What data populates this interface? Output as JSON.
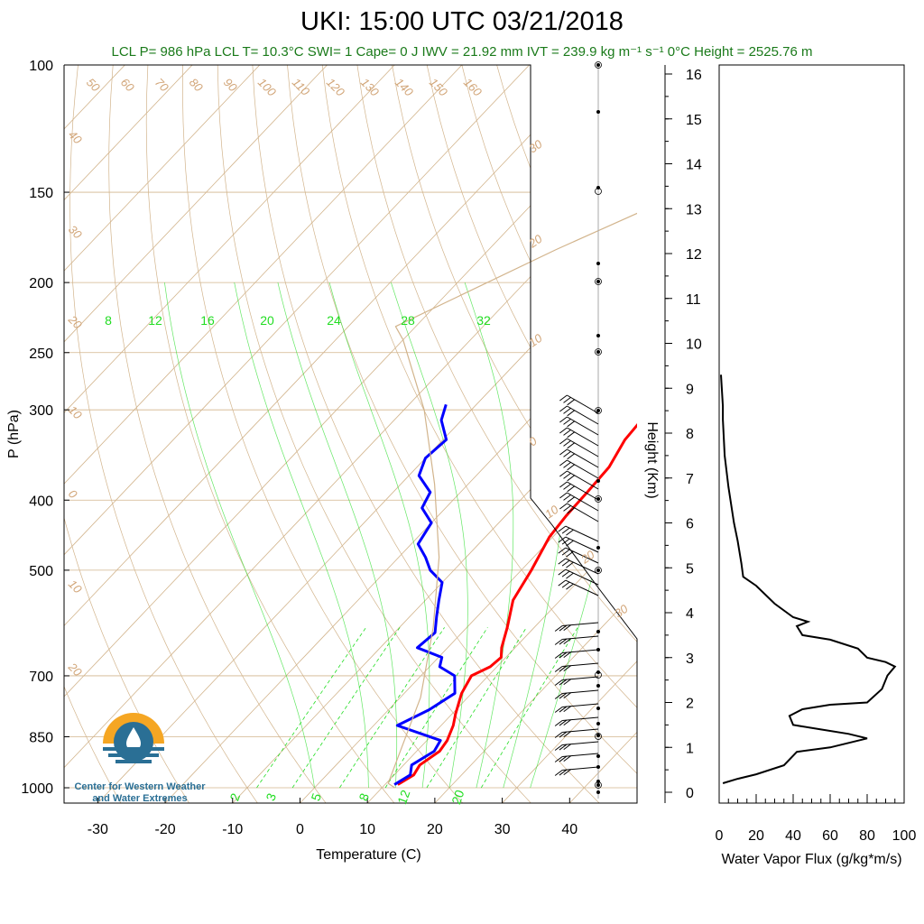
{
  "title": "UKI: 15:00 UTC 03/21/2018",
  "subtitle": "LCL P= 986 hPa  LCL T= 10.3°C  SWI= 1  Cape= 0 J  IWV = 21.92 mm  IVT = 239.9 kg m⁻¹ s⁻¹  0°C Height = 2525.76 m",
  "logo_text_line1": "Center for Western Weather",
  "logo_text_line2": "and Water Extremes",
  "colors": {
    "temperature": "#ff0000",
    "dewpoint": "#0000ff",
    "isotherm": "#d2b48c",
    "mixing_ratio": "#22dd22",
    "parcel": "#d2b48c",
    "subtitle": "#1a7a1a",
    "logo_orange": "#f5a623",
    "logo_blue": "#2a6f95"
  },
  "chart_data": [
    {
      "type": "line",
      "subtype": "skew-t log-p",
      "xlabel": "Temperature (C)",
      "ylabel": "P (hPa)",
      "xlim": [
        -35,
        50
      ],
      "ylim": [
        1050,
        100
      ],
      "y_scale": "log",
      "x_ticks": [
        "-30",
        "-20",
        "-10",
        "0",
        "10",
        "20",
        "30",
        "40"
      ],
      "y_ticks": [
        "100",
        "150",
        "200",
        "250",
        "300",
        "400",
        "500",
        "700",
        "850",
        "1000"
      ],
      "isotherm_labels": [
        "50",
        "60",
        "70",
        "80",
        "90",
        "100",
        "110",
        "120",
        "130",
        "140",
        "150",
        "160",
        "40",
        "30",
        "20",
        "10",
        "0",
        "10",
        "20"
      ],
      "dry_adiabat_labels": [
        "30",
        "20",
        "10",
        "0",
        "10",
        "20",
        "30"
      ],
      "mixing_ratio_labels_top": [
        "8",
        "12",
        "16",
        "20",
        "24",
        "28",
        "32"
      ],
      "mixing_ratio_labels_bottom": [
        "2",
        "3",
        "5",
        "8",
        "12",
        "20"
      ],
      "series": [
        {
          "name": "Temperature",
          "points": [
            [
              11.9,
              990
            ],
            [
              12.9,
              960
            ],
            [
              12.4,
              930
            ],
            [
              13.4,
              890
            ],
            [
              13.0,
              860
            ],
            [
              11.8,
              820
            ],
            [
              10.5,
              790
            ],
            [
              8.5,
              740
            ],
            [
              7.5,
              700
            ],
            [
              9.0,
              680
            ],
            [
              9.3,
              660
            ],
            [
              8.0,
              640
            ],
            [
              6.0,
              600
            ],
            [
              3.0,
              550
            ],
            [
              1.5,
              500
            ],
            [
              -0.5,
              450
            ],
            [
              -1.0,
              420
            ],
            [
              -1.2,
              390
            ],
            [
              -1.5,
              360
            ],
            [
              -3.0,
              330
            ],
            [
              -3.5,
              300
            ]
          ]
        },
        {
          "name": "Dewpoint",
          "points": [
            [
              11.4,
              990
            ],
            [
              12.4,
              960
            ],
            [
              11.2,
              930
            ],
            [
              12.6,
              890
            ],
            [
              12.0,
              860
            ],
            [
              3.5,
              820
            ],
            [
              6.0,
              780
            ],
            [
              7.5,
              740
            ],
            [
              5.0,
              700
            ],
            [
              1.5,
              680
            ],
            [
              0.5,
              660
            ],
            [
              -4.5,
              640
            ],
            [
              -4.0,
              610
            ],
            [
              -6.0,
              580
            ],
            [
              -8.0,
              550
            ],
            [
              -10.0,
              520
            ],
            [
              -13.5,
              500
            ],
            [
              -16.0,
              480
            ],
            [
              -19.0,
              460
            ],
            [
              -20.0,
              430
            ],
            [
              -23.5,
              410
            ],
            [
              -24.5,
              390
            ],
            [
              -28.5,
              370
            ],
            [
              -30.0,
              350
            ],
            [
              -29.5,
              330
            ],
            [
              -33.0,
              310
            ],
            [
              -34.5,
              295
            ]
          ]
        },
        {
          "name": "Parcel",
          "points": [
            [
              11.9,
              1000
            ],
            [
              10.3,
              986
            ],
            [
              3.0,
              750
            ],
            [
              -5.0,
              600
            ],
            [
              -14.0,
              480
            ],
            [
              -25.0,
              380
            ],
            [
              -37.0,
              300
            ],
            [
              -50.0,
              240
            ],
            [
              -53.0,
              230
            ],
            [
              -40.0,
              180
            ],
            [
              -25.0,
              140
            ],
            [
              -5.0,
              100
            ]
          ]
        }
      ]
    },
    {
      "type": "line",
      "subtype": "wind profile",
      "ylabel": "Height (Km)",
      "y_ticks": [
        "0",
        "1",
        "2",
        "3",
        "4",
        "5",
        "6",
        "7",
        "8",
        "9",
        "10",
        "11",
        "12",
        "13",
        "14",
        "15",
        "16"
      ],
      "ylim": [
        0,
        16.3
      ]
    },
    {
      "type": "line",
      "xlabel": "Water Vapor Flux (g/kg*m/s)",
      "x_ticks": [
        "0",
        "20",
        "40",
        "60",
        "80",
        "100"
      ],
      "xlim": [
        0,
        100
      ],
      "ylim": [
        0,
        16.3
      ],
      "series": [
        {
          "name": "Water Vapor Flux",
          "points": [
            [
              2,
              0.2
            ],
            [
              10,
              0.3
            ],
            [
              20,
              0.4
            ],
            [
              35,
              0.6
            ],
            [
              42,
              0.9
            ],
            [
              60,
              1.0
            ],
            [
              80,
              1.2
            ],
            [
              70,
              1.3
            ],
            [
              55,
              1.4
            ],
            [
              40,
              1.5
            ],
            [
              38,
              1.7
            ],
            [
              45,
              1.85
            ],
            [
              60,
              1.95
            ],
            [
              80,
              2.0
            ],
            [
              88,
              2.3
            ],
            [
              91,
              2.6
            ],
            [
              95,
              2.8
            ],
            [
              90,
              2.9
            ],
            [
              80,
              3.0
            ],
            [
              75,
              3.2
            ],
            [
              60,
              3.4
            ],
            [
              45,
              3.5
            ],
            [
              42,
              3.7
            ],
            [
              48,
              3.8
            ],
            [
              40,
              3.9
            ],
            [
              30,
              4.2
            ],
            [
              20,
              4.6
            ],
            [
              13,
              4.8
            ],
            [
              12,
              5.1
            ],
            [
              10,
              5.6
            ],
            [
              8,
              6.0
            ],
            [
              5,
              6.8
            ],
            [
              3,
              7.5
            ],
            [
              2,
              8.3
            ],
            [
              2,
              8.6
            ],
            [
              1,
              9.3
            ]
          ]
        }
      ]
    }
  ]
}
